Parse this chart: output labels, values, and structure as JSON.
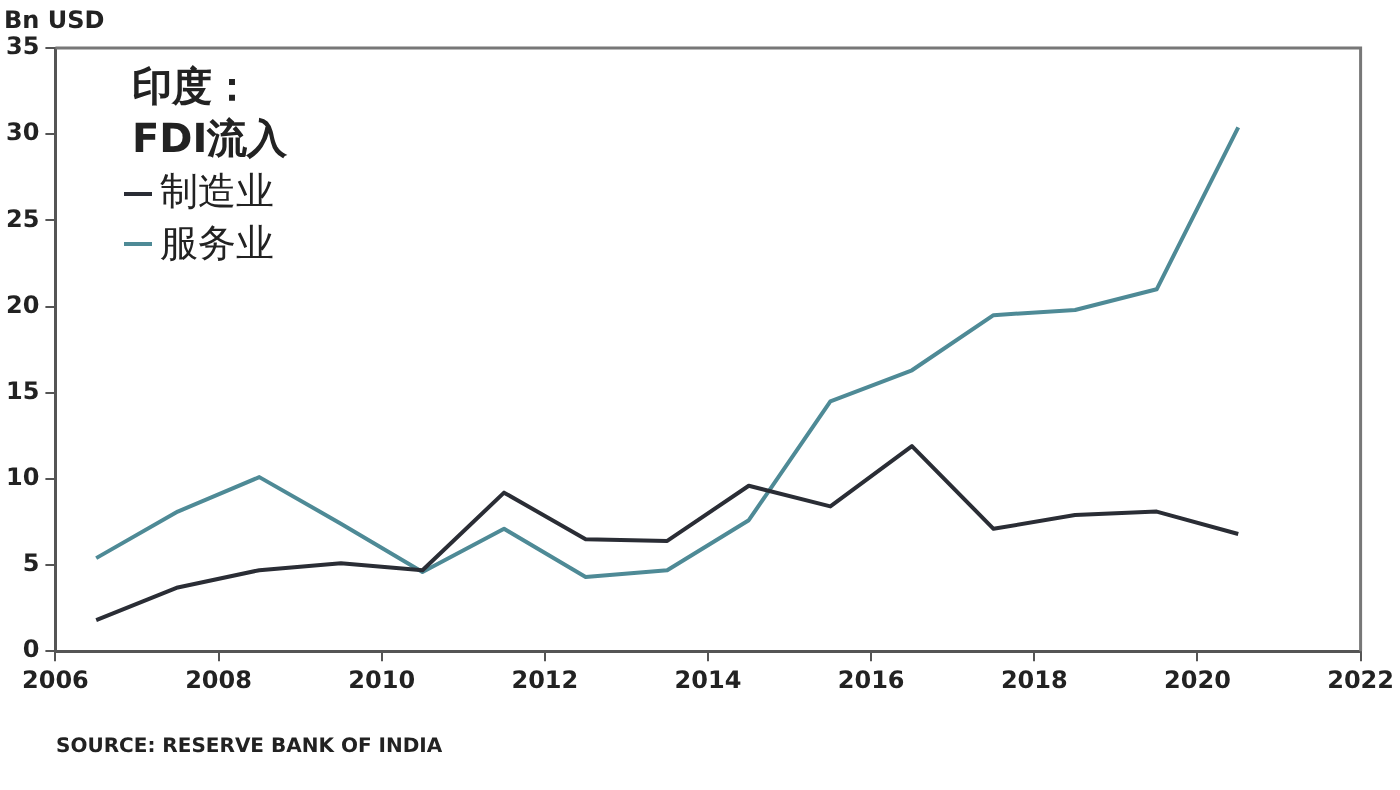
{
  "chart_data": {
    "type": "line",
    "title": "印度：FDI流入",
    "ylabel": "Bn USD",
    "x": [
      2006.5,
      2007.5,
      2008.5,
      2009.5,
      2010.5,
      2011.5,
      2012.5,
      2013.5,
      2014.5,
      2015.5,
      2016.5,
      2017.5,
      2018.5,
      2019.5,
      2020.5
    ],
    "series": [
      {
        "name": "制造业",
        "color": "#2a2d35",
        "values": [
          1.8,
          3.7,
          4.7,
          5.1,
          4.7,
          9.2,
          6.5,
          6.4,
          9.6,
          8.4,
          11.9,
          7.1,
          7.9,
          8.1,
          6.8
        ]
      },
      {
        "name": "服务业",
        "color": "#4e8a96",
        "values": [
          5.4,
          8.1,
          10.1,
          7.4,
          4.6,
          7.1,
          4.3,
          4.7,
          7.6,
          14.5,
          16.3,
          19.5,
          19.8,
          21.0,
          30.4
        ]
      }
    ],
    "xlim": [
      2006,
      2022
    ],
    "xticks": [
      2006,
      2008,
      2010,
      2012,
      2014,
      2016,
      2018,
      2020,
      2022
    ],
    "ylim": [
      0,
      35
    ],
    "yticks": [
      0,
      5,
      10,
      15,
      20,
      25,
      30,
      35
    ],
    "grid": false,
    "legend": "top left",
    "marker": "none",
    "line_style": "solid",
    "annotations": [
      "SOURCE: RESERVE BANK OF INDIA"
    ]
  }
}
